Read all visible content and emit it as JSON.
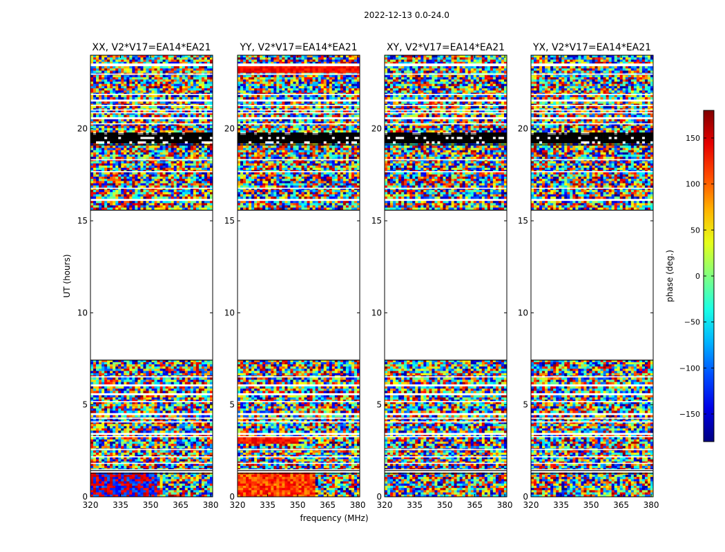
{
  "suptitle": "2022-12-13 0.0-24.0",
  "chart_data": {
    "type": "heatmap",
    "title": "2022-12-13 0.0-24.0",
    "xlabel": "frequency (MHz)",
    "ylabel": "UT (hours)",
    "xlim": [
      320,
      381
    ],
    "ylim": [
      0,
      24
    ],
    "xticks": [
      320,
      335,
      350,
      365,
      380
    ],
    "yticks": [
      0,
      5,
      10,
      15,
      20
    ],
    "panels": [
      {
        "title": "XX, V2*V17=EA14*EA21",
        "pol": "XX"
      },
      {
        "title": "YY, V2*V17=EA14*EA21",
        "pol": "YY"
      },
      {
        "title": "XY, V2*V17=EA14*EA21",
        "pol": "XY"
      },
      {
        "title": "YX, V2*V17=EA14*EA21",
        "pol": "YX"
      }
    ],
    "colorbar": {
      "label": "phase (deg.)",
      "range": [
        -180,
        180
      ],
      "ticks": [
        -150,
        -100,
        -50,
        0,
        50,
        100,
        150
      ],
      "colormap": "jet"
    },
    "data_gaps_hours": [
      [
        7.45,
        15.6
      ],
      [
        19.15,
        19.75
      ],
      [
        16.05,
        16.25
      ]
    ],
    "data_description": "Visibility phase noise vs frequency and UT, with flagged (blank) intervals"
  }
}
